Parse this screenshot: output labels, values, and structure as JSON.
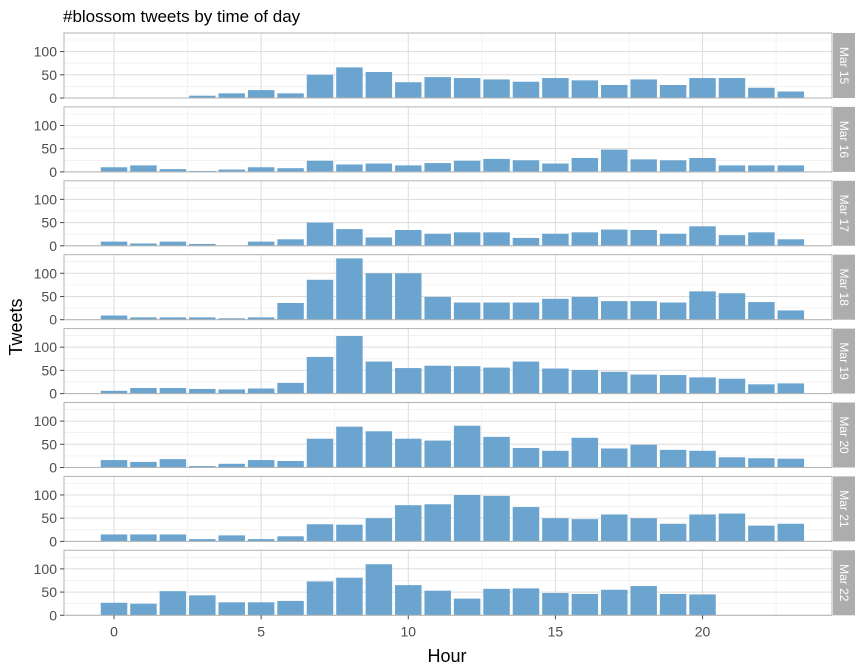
{
  "chart_data": {
    "type": "bar",
    "title": "#blossom tweets by time of day",
    "xlabel": "Hour",
    "ylabel": "Tweets",
    "bar_color": "#6ba5cf",
    "strip_color": "#adadad",
    "xlim": [
      -1.7,
      24.4
    ],
    "ylim": [
      0,
      140
    ],
    "x_ticks": [
      0,
      5,
      10,
      15,
      20
    ],
    "y_ticks": [
      0,
      50,
      100
    ],
    "grid": true,
    "facets": [
      {
        "label": "Mar 15",
        "hours": [
          3,
          4,
          5,
          6,
          7,
          8,
          9,
          10,
          11,
          12,
          13,
          14,
          15,
          16,
          17,
          18,
          19,
          20,
          21,
          22,
          23
        ],
        "values": [
          5,
          10,
          17,
          10,
          50,
          66,
          56,
          34,
          45,
          43,
          40,
          35,
          43,
          38,
          28,
          40,
          28,
          43,
          43,
          22,
          14
        ]
      },
      {
        "label": "Mar 16",
        "hours": [
          0,
          1,
          2,
          3,
          4,
          5,
          6,
          7,
          8,
          9,
          10,
          11,
          12,
          13,
          14,
          15,
          16,
          17,
          18,
          19,
          20,
          21,
          22,
          23
        ],
        "values": [
          10,
          14,
          6,
          2,
          5,
          10,
          8,
          24,
          16,
          18,
          14,
          19,
          24,
          28,
          25,
          18,
          30,
          48,
          27,
          25,
          30,
          14,
          14,
          14
        ]
      },
      {
        "label": "Mar 17",
        "hours": [
          0,
          1,
          2,
          3,
          5,
          6,
          7,
          8,
          9,
          10,
          11,
          12,
          13,
          14,
          15,
          16,
          17,
          18,
          19,
          20,
          21,
          22,
          23
        ],
        "values": [
          9,
          5,
          9,
          4,
          9,
          14,
          50,
          36,
          18,
          34,
          26,
          29,
          29,
          17,
          26,
          29,
          35,
          34,
          26,
          42,
          23,
          29,
          14
        ]
      },
      {
        "label": "Mar 18",
        "hours": [
          0,
          1,
          2,
          3,
          4,
          5,
          6,
          7,
          8,
          9,
          10,
          11,
          12,
          13,
          14,
          15,
          16,
          17,
          18,
          19,
          20,
          21,
          22,
          23
        ],
        "values": [
          9,
          5,
          5,
          5,
          3,
          5,
          36,
          86,
          132,
          100,
          100,
          49,
          37,
          37,
          37,
          45,
          49,
          40,
          40,
          37,
          61,
          57,
          38,
          20
        ]
      },
      {
        "label": "Mar 19",
        "hours": [
          0,
          1,
          2,
          3,
          4,
          5,
          6,
          7,
          8,
          9,
          10,
          11,
          12,
          13,
          14,
          15,
          16,
          17,
          18,
          19,
          20,
          21,
          22,
          23
        ],
        "values": [
          6,
          12,
          12,
          10,
          9,
          11,
          23,
          79,
          124,
          69,
          55,
          60,
          59,
          56,
          69,
          54,
          51,
          47,
          41,
          40,
          35,
          32,
          20,
          22
        ]
      },
      {
        "label": "Mar 20",
        "hours": [
          0,
          1,
          2,
          3,
          4,
          5,
          6,
          7,
          8,
          9,
          10,
          11,
          12,
          13,
          14,
          15,
          16,
          17,
          18,
          19,
          20,
          21,
          22,
          23
        ],
        "values": [
          16,
          12,
          18,
          3,
          8,
          16,
          14,
          62,
          88,
          78,
          62,
          58,
          90,
          66,
          42,
          36,
          64,
          41,
          49,
          38,
          36,
          22,
          20,
          19
        ]
      },
      {
        "label": "Mar 21",
        "hours": [
          0,
          1,
          2,
          3,
          4,
          5,
          6,
          7,
          8,
          9,
          10,
          11,
          12,
          13,
          14,
          15,
          16,
          17,
          18,
          19,
          20,
          21,
          22,
          23
        ],
        "values": [
          15,
          15,
          15,
          5,
          13,
          5,
          11,
          37,
          36,
          50,
          78,
          80,
          100,
          98,
          74,
          50,
          48,
          58,
          50,
          38,
          58,
          60,
          34,
          38
        ]
      },
      {
        "label": "Mar 22",
        "hours": [
          0,
          1,
          2,
          3,
          4,
          5,
          6,
          7,
          8,
          9,
          10,
          11,
          12,
          13,
          14,
          15,
          16,
          17,
          18,
          19,
          20
        ],
        "values": [
          27,
          25,
          52,
          43,
          28,
          28,
          31,
          73,
          81,
          110,
          65,
          53,
          36,
          57,
          58,
          48,
          46,
          55,
          63,
          46,
          45
        ]
      }
    ]
  }
}
